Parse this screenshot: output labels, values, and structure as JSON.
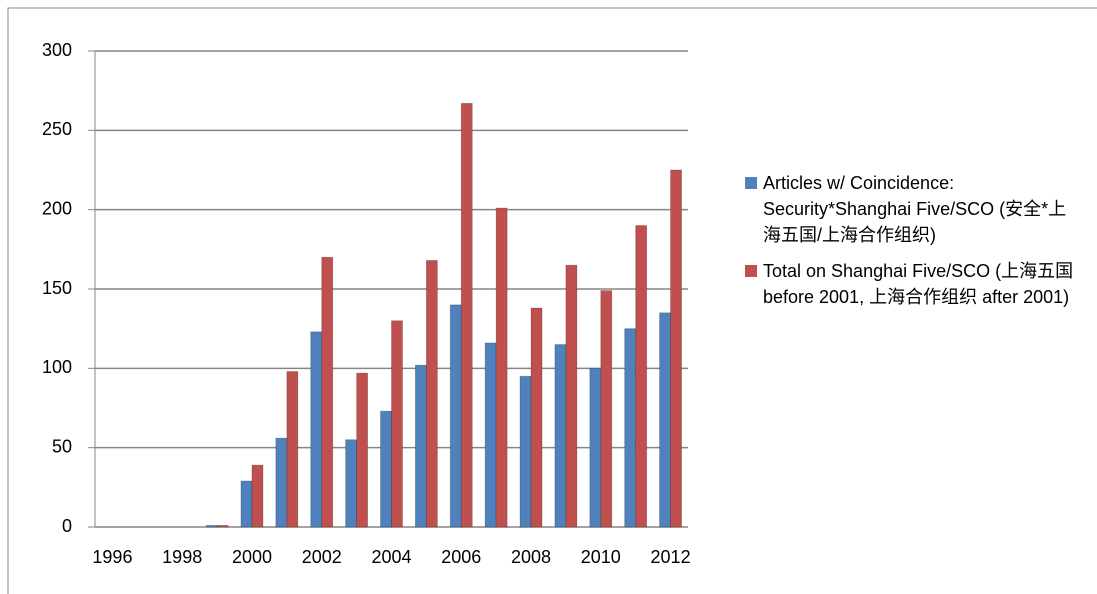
{
  "chart_data": {
    "type": "bar",
    "categories": [
      "1996",
      null,
      "1998",
      null,
      "2000",
      null,
      "2002",
      null,
      "2004",
      null,
      "2006",
      null,
      "2008",
      null,
      "2010",
      null,
      "2012"
    ],
    "series": [
      {
        "name": "Articles w/ Coincidence: Security*Shanghai Five/SCO (安全*上海五国/上海合作组织)",
        "color": "#4f81bd",
        "values": [
          0,
          0,
          0,
          1,
          29,
          56,
          123,
          55,
          73,
          102,
          140,
          116,
          95,
          115,
          100,
          125,
          135
        ]
      },
      {
        "name": "Total on Shanghai Five/SCO (上海五国 before 2001, 上海合作组织 after 2001)",
        "color": "#c0504d",
        "values": [
          0,
          0,
          0,
          1,
          39,
          98,
          170,
          97,
          130,
          168,
          267,
          201,
          138,
          165,
          149,
          190,
          225
        ]
      }
    ],
    "ylim": [
      0,
      300
    ],
    "yticks": [
      0,
      50,
      100,
      150,
      200,
      250,
      300
    ],
    "grid": true,
    "legend": "right"
  }
}
